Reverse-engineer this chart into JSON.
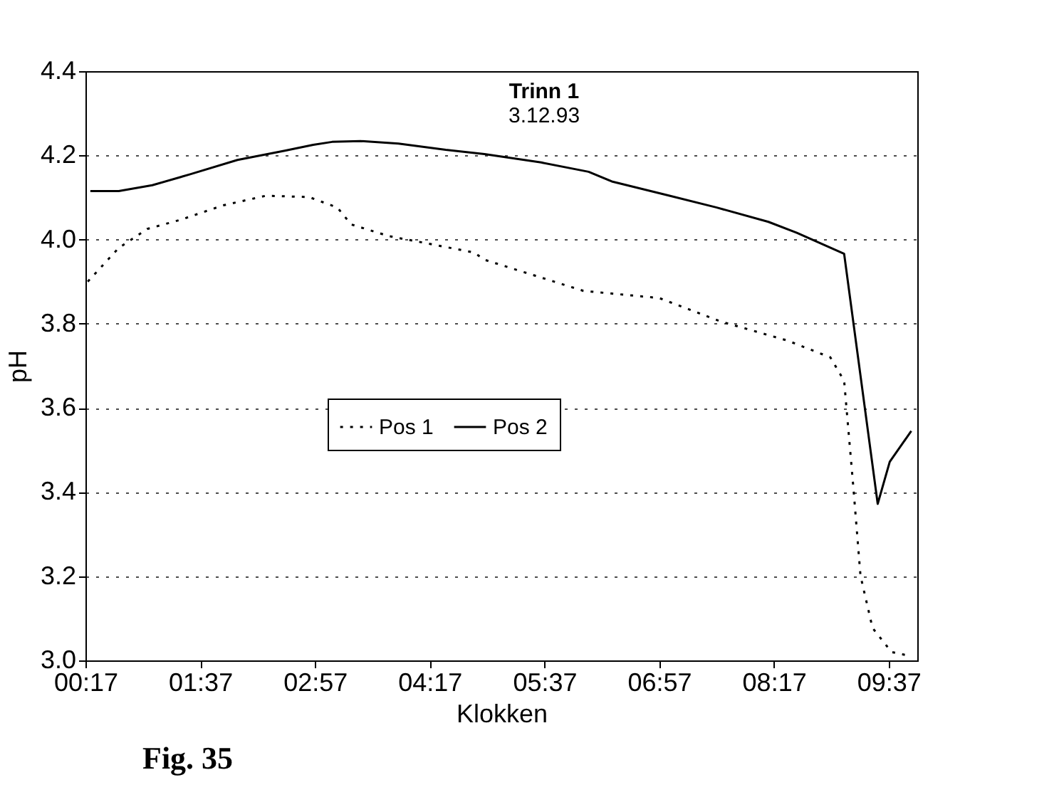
{
  "chart_data": {
    "type": "line",
    "title": "Trinn 1",
    "subtitle": "3.12.93",
    "xlabel": "Klokken",
    "ylabel": "pH",
    "annotations": [
      "Fig. 35"
    ],
    "xlim": [
      0.2833,
      9.95
    ],
    "xticks": [
      {
        "value": 0.2833,
        "label": "00:17"
      },
      {
        "value": 1.6167,
        "label": "01:37"
      },
      {
        "value": 2.95,
        "label": "02:57"
      },
      {
        "value": 4.2833,
        "label": "04:17"
      },
      {
        "value": 5.6167,
        "label": "05:37"
      },
      {
        "value": 6.95,
        "label": "06:57"
      },
      {
        "value": 8.2833,
        "label": "08:17"
      },
      {
        "value": 9.6167,
        "label": "09:37"
      }
    ],
    "ylim": [
      3.0,
      4.4
    ],
    "yticks": [
      {
        "value": 3,
        "label": "3.0"
      },
      {
        "value": 3.2,
        "label": "3.2"
      },
      {
        "value": 3.4,
        "label": "3.4"
      },
      {
        "value": 3.6,
        "label": "3.6"
      },
      {
        "value": 3.8,
        "label": "3.8"
      },
      {
        "value": 4,
        "label": "4.0"
      },
      {
        "value": 4.2,
        "label": "4.2"
      },
      {
        "value": 4.4,
        "label": "4.4"
      }
    ],
    "grid": "y",
    "legend": "center",
    "marker": "none",
    "series": [
      {
        "name": "Pos 1",
        "color": "#000000",
        "line_style": "dotted",
        "x": [
          0.31,
          0.67,
          1.0,
          1.39,
          1.88,
          2.38,
          2.88,
          3.21,
          3.37,
          3.81,
          4.25,
          4.8,
          4.92,
          6.07,
          6.95,
          7.67,
          8.44,
          8.94,
          9.1,
          9.21,
          9.29,
          9.43,
          9.65,
          9.88
        ],
        "values": [
          3.9,
          3.98,
          4.025,
          4.047,
          4.081,
          4.104,
          4.101,
          4.076,
          4.036,
          4.008,
          3.991,
          3.969,
          3.952,
          3.878,
          3.861,
          3.805,
          3.76,
          3.72,
          3.664,
          3.404,
          3.201,
          3.077,
          3.02,
          3.01
        ]
      },
      {
        "name": "Pos 2",
        "color": "#000000",
        "line_style": "solid",
        "x": [
          0.34,
          0.67,
          1.06,
          1.5,
          2.05,
          2.6,
          2.93,
          3.15,
          3.48,
          3.92,
          4.47,
          4.92,
          5.58,
          6.13,
          6.4,
          7.07,
          7.62,
          8.22,
          8.55,
          9.1,
          9.49,
          9.63,
          9.88
        ],
        "values": [
          4.115,
          4.115,
          4.129,
          4.155,
          4.189,
          4.211,
          4.225,
          4.232,
          4.234,
          4.228,
          4.213,
          4.203,
          4.183,
          4.161,
          4.138,
          4.104,
          4.076,
          4.042,
          4.016,
          3.966,
          3.372,
          3.472,
          3.545
        ]
      }
    ]
  }
}
